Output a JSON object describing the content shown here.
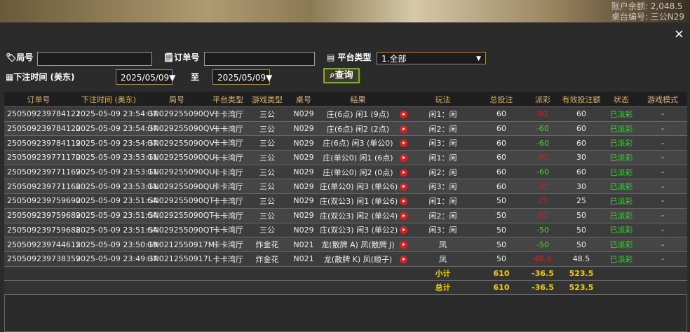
{
  "top_bar": {
    "balance_label": "账户余额:",
    "balance": "2,048.5",
    "table_label": "桌台编号:",
    "table_id": "三公N29"
  },
  "dialog": {
    "close": "×",
    "filters": {
      "round_label": "局号",
      "order_label": "订单号",
      "platform_label": "平台类型",
      "platform_value": "1.全部",
      "time_label": "下注时间 (美东)",
      "date_from": "2025/05/09▼",
      "to_label": "至",
      "date_to": "2025/05/09▼",
      "search": "查询"
    },
    "table": {
      "columns": [
        "订单号",
        "下注时间 (美东)",
        "局号",
        "平台类型",
        "游戏类型",
        "桌号",
        "结果",
        "玩法",
        "总投注",
        "派彩",
        "有效投注额",
        "状态",
        "游戏模式"
      ],
      "rows": [
        [
          "250509239784121",
          "2025-05-09 23:54:37",
          "GN029255090QV",
          "卡卡湾厅",
          "三公",
          "N029",
          "庄(6点) 闲1 (9点)",
          "闲1：闲",
          "60",
          "60",
          "60",
          "已派彩",
          "-"
        ],
        [
          "250509239784120",
          "2025-05-09 23:54:37",
          "GN029255090QV",
          "卡卡湾厅",
          "三公",
          "N029",
          "庄(6点) 闲2 (2点)",
          "闲2：闲",
          "60",
          "-60",
          "60",
          "已派彩",
          "-"
        ],
        [
          "250509239784119",
          "2025-05-09 23:54:37",
          "GN029255090QV",
          "卡卡湾厅",
          "三公",
          "N029",
          "庄(6点) 闲3 (单公0)",
          "闲3：闲",
          "60",
          "-60",
          "60",
          "已派彩",
          "-"
        ],
        [
          "250509239771170",
          "2025-05-09 23:53:11",
          "GN029255090QU",
          "卡卡湾厅",
          "三公",
          "N029",
          "庄(单公0) 闲1 (6点)",
          "闲1：闲",
          "60",
          "30",
          "30",
          "已派彩",
          "-"
        ],
        [
          "250509239771169",
          "2025-05-09 23:53:11",
          "GN029255090QU",
          "卡卡湾厅",
          "三公",
          "N029",
          "庄(单公0) 闲2 (0点)",
          "闲2：闲",
          "60",
          "-60",
          "60",
          "已派彩",
          "-"
        ],
        [
          "250509239771168",
          "2025-05-09 23:53:11",
          "GN029255090QU",
          "卡卡湾厅",
          "三公",
          "N029",
          "庄(单公0) 闲3 (单公6)",
          "闲3：闲",
          "60",
          "30",
          "30",
          "已派彩",
          "-"
        ],
        [
          "250509239759690",
          "2025-05-09 23:51:54",
          "GN029255090QT",
          "卡卡湾厅",
          "三公",
          "N029",
          "庄(双公3) 闲1 (单公6)",
          "闲1：闲",
          "50",
          "25",
          "25",
          "已派彩",
          "-"
        ],
        [
          "250509239759689",
          "2025-05-09 23:51:54",
          "GN029255090QT",
          "卡卡湾厅",
          "三公",
          "N029",
          "庄(双公3) 闲2 (单公4)",
          "闲2：闲",
          "50",
          "50",
          "50",
          "已派彩",
          "-"
        ],
        [
          "250509239759688",
          "2025-05-09 23:51:54",
          "GN029255090QT",
          "卡卡湾厅",
          "三公",
          "N029",
          "庄(双公3) 闲3 (单公2)",
          "闲3：闲",
          "50",
          "-50",
          "50",
          "已派彩",
          "-"
        ],
        [
          "250509239744615",
          "2025-05-09 23:50:19",
          "GN0212550917M",
          "卡卡湾厅",
          "炸金花",
          "N021",
          "龙(散牌 A) 凤(散牌 J)",
          "凤",
          "50",
          "-50",
          "50",
          "已派彩",
          "-"
        ],
        [
          "250509239738359",
          "2025-05-09 23:49:37",
          "GN0212550917L",
          "卡卡湾厅",
          "炸金花",
          "N021",
          "龙(散牌 K) 凤(顺子)",
          "凤",
          "50",
          "48.5",
          "48.5",
          "已派彩",
          "-"
        ]
      ],
      "summary": [
        [
          "小计",
          "610",
          "-36.5",
          "523.5"
        ],
        [
          "总计",
          "610",
          "-36.5",
          "523.5"
        ]
      ]
    }
  }
}
